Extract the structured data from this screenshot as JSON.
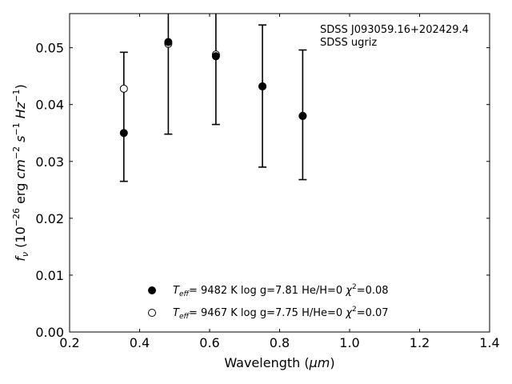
{
  "chart_data": {
    "type": "scatter",
    "xlabel_main": "Wavelength (",
    "xlabel_unit": "μm",
    "xlabel_close": ")",
    "ylabel": {
      "f": "f",
      "nu": "ν",
      "open": " (10",
      "exp1": "−26",
      "erg": " erg ",
      "cm": "cm",
      "exp2": "−2",
      "s": " s",
      "exp3": "−1",
      "hz": " Hz",
      "exp4": "−1",
      "close": ")"
    },
    "xlim": [
      0.2,
      1.4
    ],
    "ylim": [
      0.0,
      0.056
    ],
    "xticks": [
      0.2,
      0.4,
      0.6,
      0.8,
      1.0,
      1.2,
      1.4
    ],
    "yticks": [
      0.0,
      0.01,
      0.02,
      0.03,
      0.04,
      0.05
    ],
    "xtick_labels": [
      "0.2",
      "0.4",
      "0.6",
      "0.8",
      "1.0",
      "1.2",
      "1.4"
    ],
    "ytick_labels": [
      "0.00",
      "0.01",
      "0.02",
      "0.03",
      "0.04",
      "0.05"
    ],
    "annotation": [
      "SDSS J093059.16+202429.4",
      "SDSS ugriz"
    ],
    "errorbars": [
      {
        "x": 0.355,
        "y": 0.035,
        "ylo": 0.0265,
        "yhi": 0.0492
      },
      {
        "x": 0.482,
        "y": 0.051,
        "ylo": 0.0348,
        "yhi": 0.066
      },
      {
        "x": 0.618,
        "y": 0.0485,
        "ylo": 0.0365,
        "yhi": 0.062
      },
      {
        "x": 0.751,
        "y": 0.0432,
        "ylo": 0.029,
        "yhi": 0.054
      },
      {
        "x": 0.866,
        "y": 0.038,
        "ylo": 0.0268,
        "yhi": 0.0496
      }
    ],
    "series": [
      {
        "marker": "filled",
        "legend": {
          "T": "T",
          "sub": "eff",
          "rest": "=  9482 K  log g=7.81  He/H=0  ",
          "chi": "χ",
          "sup": "2",
          "chi_rest": "=0.08"
        },
        "x": [
          0.355,
          0.482,
          0.618,
          0.751,
          0.866
        ],
        "y": [
          0.035,
          0.051,
          0.0485,
          0.0432,
          0.038
        ]
      },
      {
        "marker": "open",
        "legend": {
          "T": "T",
          "sub": "eff",
          "rest": "=  9467 K  log g=7.75  H/He=0  ",
          "chi": "χ",
          "sup": "2",
          "chi_rest": "=0.07"
        },
        "x": [
          0.355,
          0.482,
          0.618,
          0.751,
          0.866
        ],
        "y": [
          0.0428,
          0.0507,
          0.0488,
          0.0432,
          0.038
        ]
      }
    ]
  }
}
